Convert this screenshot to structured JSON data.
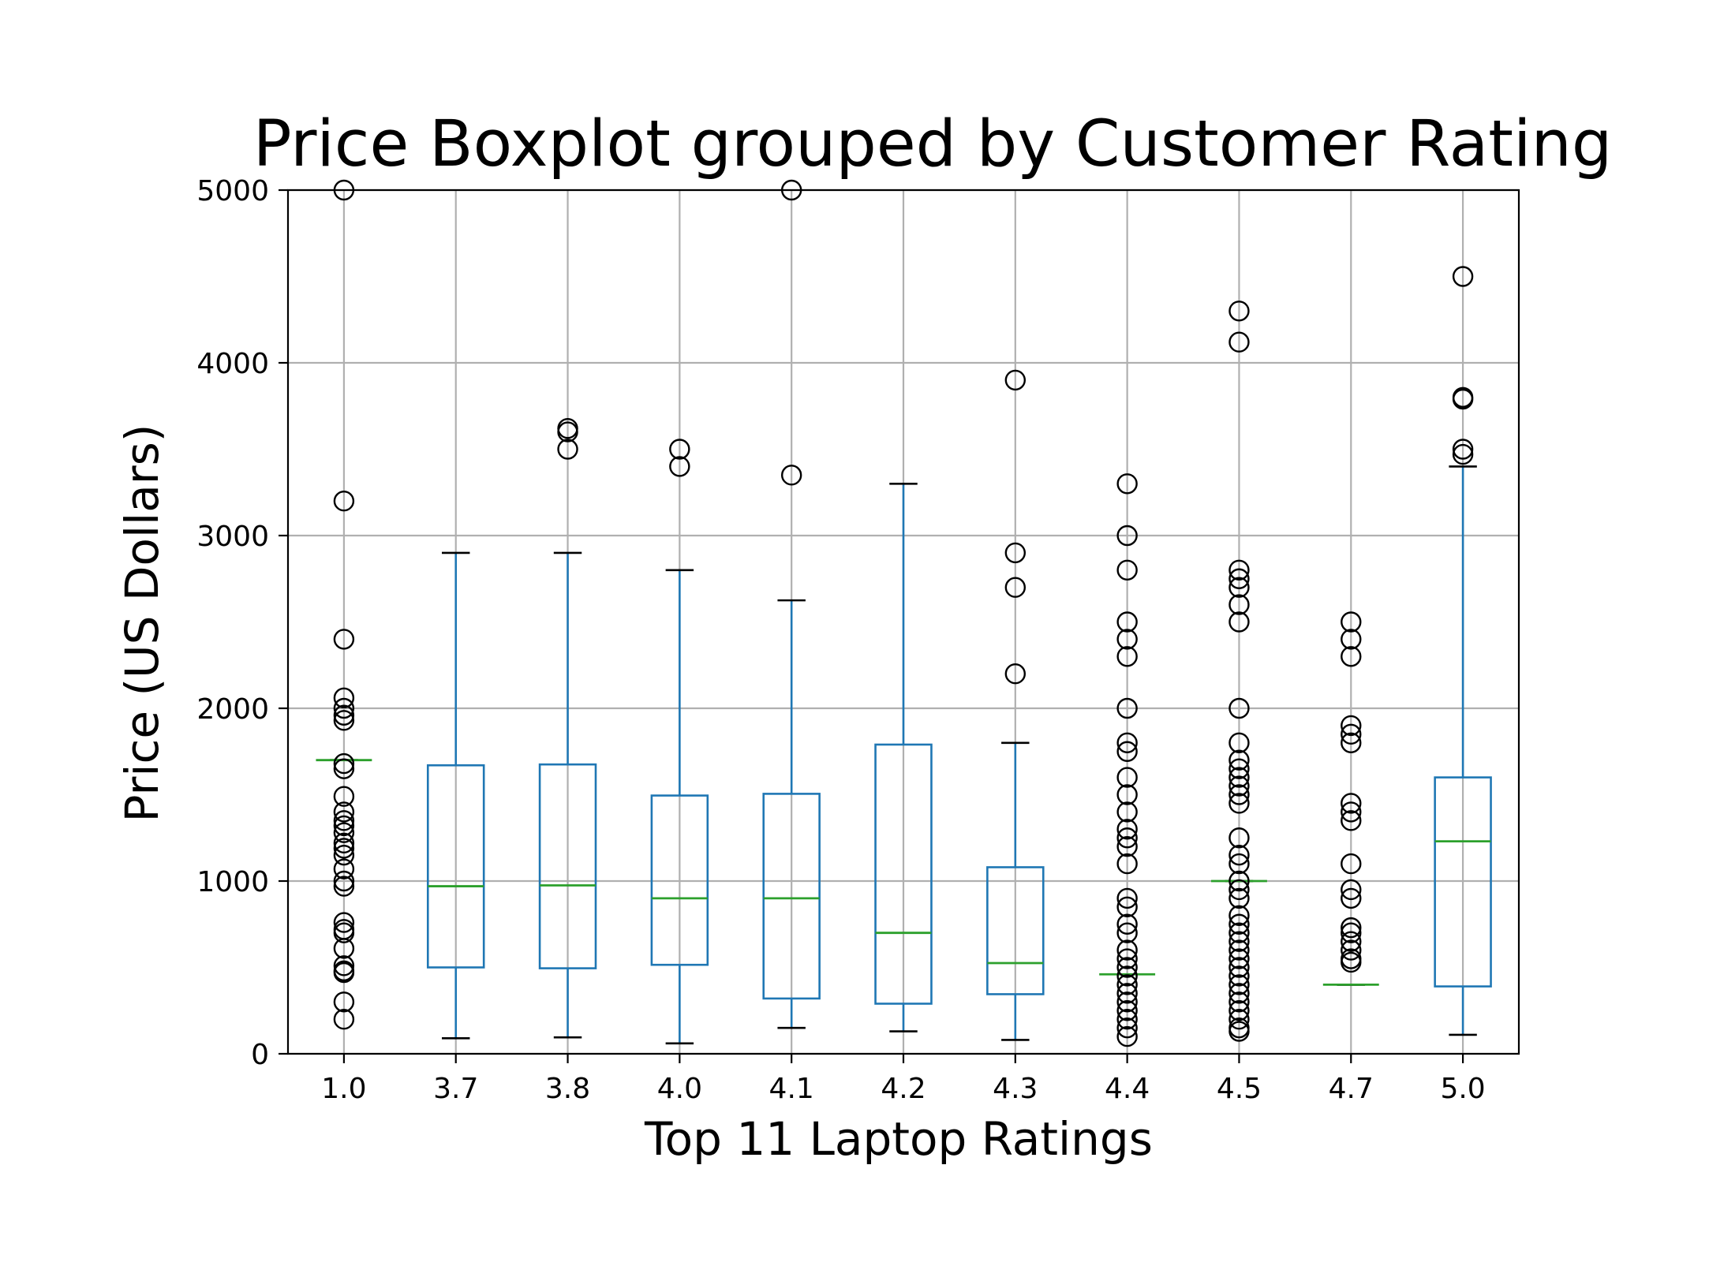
{
  "chart_data": {
    "type": "boxplot",
    "title": "Price Boxplot grouped by Customer Rating",
    "xlabel": "Top 11 Laptop Ratings",
    "ylabel": "Price (US Dollars)",
    "ylim": [
      0,
      5000
    ],
    "yticks": [
      0,
      1000,
      2000,
      3000,
      4000,
      5000
    ],
    "grid": true,
    "colors": {
      "box": "#1f77b4",
      "median": "#2ca02c",
      "whisker": "#1f77b4",
      "cap": "#000000",
      "outlier": "#000000"
    },
    "categories": [
      "1.0",
      "3.7",
      "3.8",
      "4.0",
      "4.1",
      "4.2",
      "4.3",
      "4.4",
      "4.5",
      "4.7",
      "5.0"
    ],
    "boxes": [
      {
        "q1": 1700,
        "median": 1700,
        "q3": 1700,
        "whislo": 1700,
        "whishi": 1700,
        "fliers": [
          5000,
          3200,
          2400,
          2060,
          2000,
          1960,
          1930,
          1680,
          1650,
          1490,
          1400,
          1350,
          1320,
          1280,
          1220,
          1190,
          1150,
          1070,
          1000,
          970,
          760,
          720,
          700,
          610,
          510,
          480,
          470,
          300,
          200
        ]
      },
      {
        "q1": 500,
        "median": 970,
        "q3": 1670,
        "whislo": 90,
        "whishi": 2900,
        "fliers": []
      },
      {
        "q1": 495,
        "median": 975,
        "q3": 1675,
        "whislo": 95,
        "whishi": 2900,
        "fliers": [
          3620,
          3600,
          3500
        ]
      },
      {
        "q1": 515,
        "median": 900,
        "q3": 1495,
        "whislo": 60,
        "whishi": 2800,
        "fliers": [
          3500,
          3400
        ]
      },
      {
        "q1": 320,
        "median": 900,
        "q3": 1505,
        "whislo": 150,
        "whishi": 2625,
        "fliers": [
          5000,
          3350
        ]
      },
      {
        "q1": 290,
        "median": 700,
        "q3": 1790,
        "whislo": 130,
        "whishi": 3300,
        "fliers": []
      },
      {
        "q1": 345,
        "median": 525,
        "q3": 1080,
        "whislo": 80,
        "whishi": 1800,
        "fliers": [
          3900,
          2900,
          2700,
          2200
        ]
      },
      {
        "q1": 460,
        "median": 460,
        "q3": 460,
        "whislo": 460,
        "whishi": 460,
        "fliers": [
          3300,
          3000,
          2800,
          2500,
          2400,
          2300,
          2000,
          1800,
          1750,
          1600,
          1500,
          1400,
          1300,
          1250,
          1200,
          1100,
          900,
          850,
          750,
          700,
          600,
          550,
          500,
          450,
          400,
          350,
          300,
          250,
          200,
          150,
          100
        ]
      },
      {
        "q1": 1000,
        "median": 1000,
        "q3": 1000,
        "whislo": 1000,
        "whishi": 1000,
        "fliers": [
          4300,
          4120,
          2800,
          2750,
          2700,
          2600,
          2500,
          2000,
          1800,
          1700,
          1650,
          1600,
          1550,
          1500,
          1450,
          1250,
          1150,
          1100,
          1000,
          950,
          900,
          800,
          750,
          700,
          650,
          600,
          550,
          500,
          450,
          400,
          350,
          300,
          250,
          200,
          150,
          130
        ]
      },
      {
        "q1": 400,
        "median": 400,
        "q3": 400,
        "whislo": 400,
        "whishi": 400,
        "fliers": [
          2500,
          2400,
          2300,
          1900,
          1850,
          1800,
          1450,
          1400,
          1350,
          1100,
          950,
          900,
          730,
          700,
          650,
          600,
          550,
          530
        ]
      },
      {
        "q1": 390,
        "median": 1230,
        "q3": 1600,
        "whislo": 110,
        "whishi": 3400,
        "fliers": [
          4500,
          3800,
          3790,
          3500,
          3470
        ]
      }
    ]
  }
}
